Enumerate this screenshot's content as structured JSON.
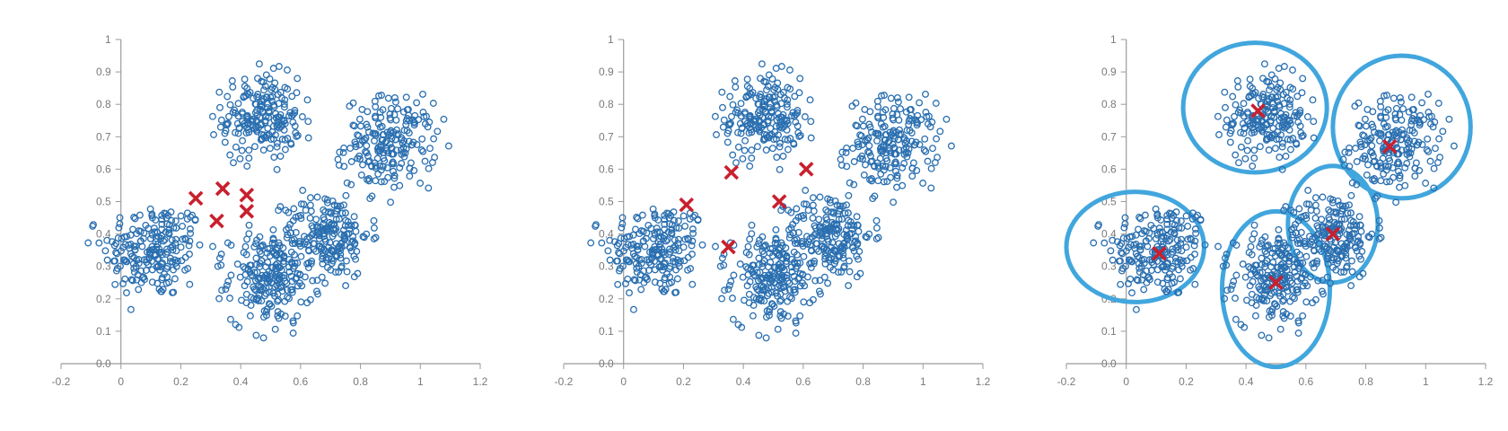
{
  "style": {
    "point_color": "#2a6fb0",
    "centroid_color": "#c8202e",
    "cluster_outline_color": "#41a6dd",
    "axis_color": "#9a9a9a",
    "tick_label_color": "#7a7a7a"
  },
  "chart_data": [
    {
      "type": "scatter",
      "title": "",
      "xlabel": "",
      "ylabel": "",
      "xlim": [
        -0.2,
        1.2
      ],
      "ylim": [
        0.0,
        1.0
      ],
      "x_ticks": [
        -0.2,
        0,
        0.2,
        0.4,
        0.6,
        0.8,
        1,
        1.2
      ],
      "x_tick_labels": [
        "-0.2",
        "0",
        "0.2",
        "0.4",
        "0.6",
        "0.8",
        "1",
        "1.2"
      ],
      "y_ticks": [
        0.0,
        0.1,
        0.2,
        0.3,
        0.4,
        0.5,
        0.6,
        0.7,
        0.8,
        0.9,
        1.0
      ],
      "y_tick_labels": [
        "0.0",
        "0.1",
        "0.2",
        "0.3",
        "0.4",
        "0.5",
        "0.6",
        "0.7",
        "0.8",
        "0.9",
        "1"
      ],
      "grid": false,
      "point_clusters": [
        {
          "center": [
            0.11,
            0.35
          ],
          "spread": [
            0.085,
            0.075
          ],
          "count": 210
        },
        {
          "center": [
            0.47,
            0.76
          ],
          "spread": [
            0.065,
            0.065
          ],
          "count": 200
        },
        {
          "center": [
            0.9,
            0.68
          ],
          "spread": [
            0.075,
            0.07
          ],
          "count": 200
        },
        {
          "center": [
            0.5,
            0.26
          ],
          "spread": [
            0.07,
            0.07
          ],
          "count": 220
        },
        {
          "center": [
            0.69,
            0.4
          ],
          "spread": [
            0.07,
            0.065
          ],
          "count": 200
        }
      ],
      "centroids": [
        {
          "x": 0.25,
          "y": 0.51
        },
        {
          "x": 0.34,
          "y": 0.54
        },
        {
          "x": 0.42,
          "y": 0.52
        },
        {
          "x": 0.32,
          "y": 0.44
        },
        {
          "x": 0.42,
          "y": 0.47
        }
      ]
    },
    {
      "type": "scatter",
      "title": "",
      "xlabel": "",
      "ylabel": "",
      "xlim": [
        -0.2,
        1.2
      ],
      "ylim": [
        0.0,
        1.0
      ],
      "x_ticks": [
        -0.2,
        0,
        0.2,
        0.4,
        0.6,
        0.8,
        1,
        1.2
      ],
      "x_tick_labels": [
        "-0.2",
        "0",
        "0.2",
        "0.4",
        "0.6",
        "0.8",
        "1",
        "1.2"
      ],
      "y_ticks": [
        0.0,
        0.1,
        0.2,
        0.3,
        0.4,
        0.5,
        0.6,
        0.7,
        0.8,
        0.9,
        1.0
      ],
      "y_tick_labels": [
        "0.0",
        "0.1",
        "0.2",
        "0.3",
        "0.4",
        "0.5",
        "0.6",
        "0.7",
        "0.8",
        "0.9",
        "1"
      ],
      "grid": false,
      "point_clusters": [
        {
          "center": [
            0.11,
            0.35
          ],
          "spread": [
            0.085,
            0.075
          ],
          "count": 210
        },
        {
          "center": [
            0.47,
            0.76
          ],
          "spread": [
            0.065,
            0.065
          ],
          "count": 200
        },
        {
          "center": [
            0.9,
            0.68
          ],
          "spread": [
            0.075,
            0.07
          ],
          "count": 200
        },
        {
          "center": [
            0.5,
            0.26
          ],
          "spread": [
            0.07,
            0.07
          ],
          "count": 220
        },
        {
          "center": [
            0.69,
            0.4
          ],
          "spread": [
            0.07,
            0.065
          ],
          "count": 200
        }
      ],
      "centroids": [
        {
          "x": 0.21,
          "y": 0.49
        },
        {
          "x": 0.36,
          "y": 0.59
        },
        {
          "x": 0.61,
          "y": 0.6
        },
        {
          "x": 0.52,
          "y": 0.5
        },
        {
          "x": 0.35,
          "y": 0.36
        }
      ]
    },
    {
      "type": "scatter",
      "title": "",
      "xlabel": "",
      "ylabel": "",
      "xlim": [
        -0.2,
        1.2
      ],
      "ylim": [
        0.0,
        1.0
      ],
      "x_ticks": [
        -0.2,
        0,
        0.2,
        0.4,
        0.6,
        0.8,
        1,
        1.2
      ],
      "x_tick_labels": [
        "-0.2",
        "0",
        "0.2",
        "0.4",
        "0.6",
        "0.8",
        "1",
        "1.2"
      ],
      "y_ticks": [
        0.0,
        0.1,
        0.2,
        0.3,
        0.4,
        0.5,
        0.6,
        0.7,
        0.8,
        0.9,
        1.0
      ],
      "y_tick_labels": [
        "0.0",
        "0.1",
        "0.2",
        "0.3",
        "0.4",
        "0.5",
        "0.6",
        "0.7",
        "0.8",
        "0.9",
        "1"
      ],
      "grid": false,
      "point_clusters": [
        {
          "center": [
            0.11,
            0.35
          ],
          "spread": [
            0.085,
            0.075
          ],
          "count": 210
        },
        {
          "center": [
            0.47,
            0.76
          ],
          "spread": [
            0.065,
            0.065
          ],
          "count": 200
        },
        {
          "center": [
            0.9,
            0.68
          ],
          "spread": [
            0.075,
            0.07
          ],
          "count": 200
        },
        {
          "center": [
            0.5,
            0.26
          ],
          "spread": [
            0.07,
            0.07
          ],
          "count": 220
        },
        {
          "center": [
            0.69,
            0.4
          ],
          "spread": [
            0.07,
            0.065
          ],
          "count": 200
        }
      ],
      "centroids": [
        {
          "x": 0.11,
          "y": 0.34
        },
        {
          "x": 0.44,
          "y": 0.78
        },
        {
          "x": 0.88,
          "y": 0.67
        },
        {
          "x": 0.5,
          "y": 0.25
        },
        {
          "x": 0.69,
          "y": 0.4
        }
      ],
      "cluster_outlines": [
        {
          "cx": 0.03,
          "cy": 0.36,
          "rx": 0.23,
          "ry": 0.17
        },
        {
          "cx": 0.43,
          "cy": 0.79,
          "rx": 0.24,
          "ry": 0.2
        },
        {
          "cx": 0.92,
          "cy": 0.73,
          "rx": 0.23,
          "ry": 0.22
        },
        {
          "cx": 0.5,
          "cy": 0.23,
          "rx": 0.18,
          "ry": 0.24
        },
        {
          "cx": 0.69,
          "cy": 0.43,
          "rx": 0.15,
          "ry": 0.18
        }
      ]
    }
  ]
}
